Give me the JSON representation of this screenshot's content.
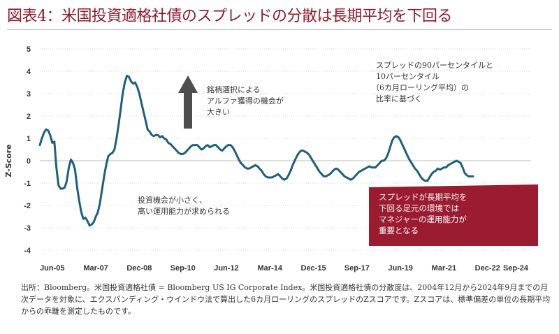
{
  "title": "図表4：米国投資適格社債のスプレッドの分散は長期平均を下回る",
  "source": "出所：Bloomberg。米国投資適格社債 = Bloomberg US IG Corporate Index。米国投資適格社債の分散度は、2004年12月から2024年9月までの月次データを対象に、エクスパンディング・ウインドウ法で算出した6カ月ローリングのスプレッドのZスコアです。Zスコアは、標準偏差の単位の長期平均からの乖離を測定したものです。",
  "colors": {
    "line": "#1f5f7a",
    "title": "#8e1b2e",
    "callout": "#9b1b30",
    "arrow": "#4d4d4d"
  },
  "chart_data": {
    "type": "line",
    "ylabel": "Z-Score",
    "ylim": [
      -4,
      5
    ],
    "yticks": [
      "5",
      "4",
      "3",
      "2",
      "1",
      "0",
      "-1",
      "-2",
      "-3",
      "-4"
    ],
    "xticks": [
      "Jun-05",
      "Mar-07",
      "Dec-08",
      "Sep-10",
      "Jun-12",
      "Mar-14",
      "Dec-15",
      "Sep-17",
      "Jun-19",
      "Mar-21",
      "Dec-22",
      "Sep-24"
    ],
    "grid": "horizontal",
    "series": [
      {
        "points": [
          [
            "2004-12",
            0.7
          ],
          [
            "2005-01",
            1.0
          ],
          [
            "2005-02",
            1.25
          ],
          [
            "2005-03",
            1.4
          ],
          [
            "2005-04",
            1.35
          ],
          [
            "2005-05",
            1.15
          ],
          [
            "2005-06",
            0.8
          ],
          [
            "2005-07",
            0.85
          ],
          [
            "2005-08",
            -0.3
          ],
          [
            "2005-09",
            -1.1
          ],
          [
            "2005-10",
            -1.25
          ],
          [
            "2005-11",
            -1.25
          ],
          [
            "2005-12",
            -1.2
          ],
          [
            "2006-01",
            -0.9
          ],
          [
            "2006-02",
            -0.3
          ],
          [
            "2006-03",
            0.05
          ],
          [
            "2006-04",
            -0.1
          ],
          [
            "2006-05",
            -0.4
          ],
          [
            "2006-06",
            -1.2
          ],
          [
            "2006-07",
            -1.8
          ],
          [
            "2006-08",
            -2.3
          ],
          [
            "2006-09",
            -2.6
          ],
          [
            "2006-10",
            -2.55
          ],
          [
            "2006-11",
            -2.7
          ],
          [
            "2006-12",
            -2.9
          ],
          [
            "2007-01",
            -2.85
          ],
          [
            "2007-02",
            -2.75
          ],
          [
            "2007-03",
            -2.5
          ],
          [
            "2007-04",
            -2.3
          ],
          [
            "2007-05",
            -1.9
          ],
          [
            "2007-06",
            -1.3
          ],
          [
            "2007-07",
            -0.7
          ],
          [
            "2007-08",
            -0.2
          ],
          [
            "2007-09",
            0.2
          ],
          [
            "2007-10",
            0.3
          ],
          [
            "2007-11",
            0.35
          ],
          [
            "2007-12",
            0.5
          ],
          [
            "2008-01",
            1.0
          ],
          [
            "2008-02",
            1.6
          ],
          [
            "2008-03",
            2.3
          ],
          [
            "2008-04",
            3.0
          ],
          [
            "2008-05",
            3.5
          ],
          [
            "2008-06",
            3.8
          ],
          [
            "2008-07",
            3.75
          ],
          [
            "2008-08",
            3.55
          ],
          [
            "2008-09",
            3.45
          ],
          [
            "2008-10",
            3.5
          ],
          [
            "2008-11",
            3.3
          ],
          [
            "2008-12",
            3.0
          ],
          [
            "2009-01",
            2.6
          ],
          [
            "2009-02",
            2.2
          ],
          [
            "2009-03",
            1.8
          ],
          [
            "2009-04",
            1.4
          ],
          [
            "2009-05",
            1.3
          ],
          [
            "2009-06",
            1.15
          ],
          [
            "2009-07",
            1.1
          ],
          [
            "2009-08",
            1.15
          ],
          [
            "2009-09",
            1.15
          ],
          [
            "2009-10",
            1.05
          ],
          [
            "2009-11",
            1.1
          ],
          [
            "2009-12",
            1.0
          ],
          [
            "2010-01",
            0.95
          ],
          [
            "2010-02",
            0.8
          ],
          [
            "2010-03",
            0.75
          ],
          [
            "2010-04",
            0.65
          ],
          [
            "2010-05",
            0.55
          ],
          [
            "2010-06",
            0.45
          ],
          [
            "2010-07",
            0.35
          ],
          [
            "2010-08",
            0.3
          ],
          [
            "2010-09",
            0.3
          ],
          [
            "2010-10",
            0.35
          ],
          [
            "2010-11",
            0.45
          ],
          [
            "2010-12",
            0.55
          ],
          [
            "2011-01",
            0.65
          ],
          [
            "2011-02",
            0.7
          ],
          [
            "2011-03",
            0.7
          ],
          [
            "2011-04",
            0.7
          ],
          [
            "2011-05",
            0.6
          ],
          [
            "2011-06",
            0.5
          ],
          [
            "2011-07",
            0.55
          ],
          [
            "2011-08",
            0.65
          ],
          [
            "2011-09",
            0.7
          ],
          [
            "2011-10",
            0.6
          ],
          [
            "2011-11",
            0.65
          ],
          [
            "2011-12",
            0.7
          ],
          [
            "2012-01",
            0.7
          ],
          [
            "2012-02",
            0.6
          ],
          [
            "2012-03",
            0.5
          ],
          [
            "2012-04",
            0.45
          ],
          [
            "2012-05",
            0.55
          ],
          [
            "2012-06",
            0.65
          ],
          [
            "2012-07",
            0.7
          ],
          [
            "2012-08",
            0.7
          ],
          [
            "2012-09",
            0.6
          ],
          [
            "2012-10",
            0.45
          ],
          [
            "2012-11",
            0.25
          ],
          [
            "2012-12",
            0.05
          ],
          [
            "2013-01",
            -0.1
          ],
          [
            "2013-02",
            -0.2
          ],
          [
            "2013-03",
            -0.3
          ],
          [
            "2013-04",
            -0.35
          ],
          [
            "2013-05",
            -0.35
          ],
          [
            "2013-06",
            -0.3
          ],
          [
            "2013-07",
            -0.25
          ],
          [
            "2013-08",
            -0.2
          ],
          [
            "2013-09",
            -0.25
          ],
          [
            "2013-10",
            -0.35
          ],
          [
            "2013-11",
            -0.45
          ],
          [
            "2013-12",
            -0.6
          ],
          [
            "2014-01",
            -0.7
          ],
          [
            "2014-02",
            -0.75
          ],
          [
            "2014-03",
            -0.75
          ],
          [
            "2014-04",
            -0.75
          ],
          [
            "2014-05",
            -0.7
          ],
          [
            "2014-06",
            -0.65
          ],
          [
            "2014-07",
            -0.6
          ],
          [
            "2014-08",
            -0.7
          ],
          [
            "2014-09",
            -0.8
          ],
          [
            "2014-10",
            -0.85
          ],
          [
            "2014-11",
            -0.8
          ],
          [
            "2014-12",
            -0.65
          ],
          [
            "2015-01",
            -0.45
          ],
          [
            "2015-02",
            -0.2
          ],
          [
            "2015-03",
            0.0
          ],
          [
            "2015-04",
            0.2
          ],
          [
            "2015-05",
            0.35
          ],
          [
            "2015-06",
            0.45
          ],
          [
            "2015-07",
            0.45
          ],
          [
            "2015-08",
            0.4
          ],
          [
            "2015-09",
            0.35
          ],
          [
            "2015-10",
            0.25
          ],
          [
            "2015-11",
            0.1
          ],
          [
            "2015-12",
            -0.05
          ],
          [
            "2016-01",
            -0.2
          ],
          [
            "2016-02",
            -0.35
          ],
          [
            "2016-03",
            -0.5
          ],
          [
            "2016-04",
            -0.6
          ],
          [
            "2016-05",
            -0.7
          ],
          [
            "2016-06",
            -0.7
          ],
          [
            "2016-07",
            -0.65
          ],
          [
            "2016-08",
            -0.6
          ],
          [
            "2016-09",
            -0.5
          ],
          [
            "2016-10",
            -0.4
          ],
          [
            "2016-11",
            -0.35
          ],
          [
            "2016-12",
            -0.4
          ],
          [
            "2017-01",
            -0.5
          ],
          [
            "2017-02",
            -0.6
          ],
          [
            "2017-03",
            -0.7
          ],
          [
            "2017-04",
            -0.75
          ],
          [
            "2017-05",
            -0.8
          ],
          [
            "2017-06",
            -0.85
          ],
          [
            "2017-07",
            -0.8
          ],
          [
            "2017-08",
            -0.7
          ],
          [
            "2017-09",
            -0.6
          ],
          [
            "2017-10",
            -0.5
          ],
          [
            "2017-11",
            -0.45
          ],
          [
            "2017-12",
            -0.4
          ],
          [
            "2018-01",
            -0.35
          ],
          [
            "2018-02",
            -0.3
          ],
          [
            "2018-03",
            -0.25
          ],
          [
            "2018-04",
            -0.3
          ],
          [
            "2018-05",
            -0.3
          ],
          [
            "2018-06",
            -0.3
          ],
          [
            "2018-07",
            -0.2
          ],
          [
            "2018-08",
            -0.1
          ],
          [
            "2018-09",
            0.0
          ],
          [
            "2018-10",
            0.0
          ],
          [
            "2018-11",
            0.1
          ],
          [
            "2018-12",
            0.3
          ],
          [
            "2019-01",
            0.6
          ],
          [
            "2019-02",
            0.9
          ],
          [
            "2019-03",
            1.05
          ],
          [
            "2019-04",
            1.1
          ],
          [
            "2019-05",
            1.05
          ],
          [
            "2019-06",
            0.9
          ],
          [
            "2019-07",
            0.7
          ],
          [
            "2019-08",
            0.5
          ],
          [
            "2019-09",
            0.3
          ],
          [
            "2019-10",
            0.1
          ],
          [
            "2019-11",
            -0.05
          ],
          [
            "2019-12",
            -0.2
          ],
          [
            "2020-01",
            -0.35
          ],
          [
            "2020-02",
            -0.45
          ],
          [
            "2020-03",
            -0.6
          ],
          [
            "2020-04",
            -0.75
          ],
          [
            "2020-05",
            -0.85
          ],
          [
            "2020-06",
            -0.9
          ],
          [
            "2020-07",
            -0.9
          ],
          [
            "2020-08",
            -0.75
          ],
          [
            "2020-09",
            -0.6
          ],
          [
            "2020-10",
            -0.5
          ],
          [
            "2020-11",
            -0.45
          ],
          [
            "2020-12",
            -0.35
          ],
          [
            "2021-01",
            -0.4
          ],
          [
            "2021-02",
            -0.35
          ],
          [
            "2021-03",
            -0.3
          ],
          [
            "2021-04",
            -0.3
          ],
          [
            "2021-05",
            -0.2
          ],
          [
            "2021-06",
            -0.15
          ],
          [
            "2021-07",
            -0.1
          ],
          [
            "2021-08",
            -0.05
          ],
          [
            "2021-09",
            0.0
          ],
          [
            "2021-10",
            -0.05
          ],
          [
            "2021-11",
            -0.1
          ],
          [
            "2021-12",
            -0.3
          ],
          [
            "2022-01",
            -0.55
          ],
          [
            "2022-02",
            -0.65
          ],
          [
            "2022-03",
            -0.7
          ],
          [
            "2022-04",
            -0.7
          ],
          [
            "2022-05",
            -0.7
          ]
        ]
      }
    ]
  },
  "annotations": {
    "alpha": [
      "銘柄選択による",
      "アルファ獲得の機会が",
      "大きい"
    ],
    "percentile": [
      "スプレッドの90パーセンタイルと",
      "10パーセンタイル",
      "（6カ月ローリング平均）の",
      "比率に基づく"
    ],
    "small": [
      "投資機会が小さく、",
      "高い運用能力が求められる"
    ],
    "callout": [
      "スプレッドが長期平均を",
      "下回る足元の環境では",
      "マネジャーの運用能力が",
      "重要となる"
    ]
  }
}
